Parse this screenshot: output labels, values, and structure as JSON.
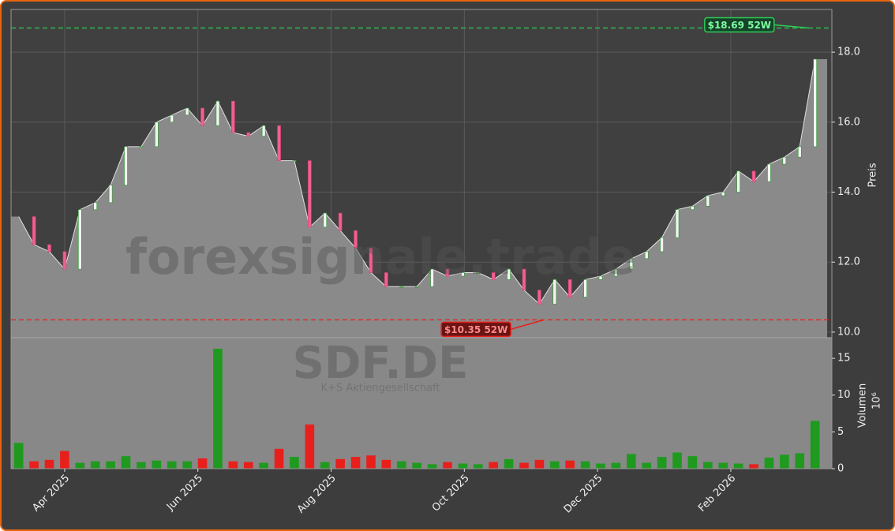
{
  "chart_data": {
    "type": "stock",
    "watermark": "forexsignale.trade",
    "ticker": "SDF.DE",
    "company": "K+S Aktiengesellschaft",
    "y_label": "Preis",
    "y2_label": "Volumen",
    "y2_unit": "10⁶",
    "x": [
      0,
      1,
      2,
      3,
      4,
      5,
      6,
      7,
      8,
      9,
      10,
      11,
      12,
      13,
      14,
      15,
      16,
      17,
      18,
      19,
      20,
      21,
      22,
      23,
      24,
      25,
      26,
      27,
      28,
      29,
      30,
      31,
      32,
      33,
      34,
      35,
      36,
      37,
      38,
      39,
      40,
      41,
      42,
      43,
      44,
      45,
      46,
      47,
      48,
      49,
      50,
      51,
      52
    ],
    "xlim": [
      -0.5,
      53.1
    ],
    "xticks": [
      {
        "value": 3.0,
        "label": "Apr 2025"
      },
      {
        "value": 11.7,
        "label": "Jun 2025"
      },
      {
        "value": 20.4,
        "label": "Aug 2025"
      },
      {
        "value": 29.1,
        "label": "Oct 2025"
      },
      {
        "value": 37.8,
        "label": "Dec 2025"
      },
      {
        "value": 46.5,
        "label": "Feb 2026"
      }
    ],
    "series": [
      {
        "name": "Preis",
        "color": "#8a8a8a",
        "values": [
          13.3,
          12.5,
          12.3,
          11.8,
          13.5,
          13.7,
          14.2,
          15.3,
          15.3,
          16.0,
          16.2,
          16.4,
          15.9,
          16.6,
          15.7,
          15.6,
          15.9,
          14.9,
          14.9,
          13.0,
          13.4,
          12.9,
          12.4,
          11.7,
          11.3,
          11.3,
          11.3,
          11.8,
          11.6,
          11.7,
          11.7,
          11.5,
          11.8,
          11.2,
          10.8,
          11.5,
          11.0,
          11.5,
          11.6,
          11.8,
          12.1,
          12.3,
          12.7,
          13.5,
          13.6,
          13.9,
          14.0,
          14.6,
          14.3,
          14.8,
          15.0,
          15.3,
          17.8
        ]
      },
      {
        "name": "Volumen",
        "axis": "y2",
        "values": [
          3.5,
          1.0,
          1.2,
          2.4,
          0.8,
          1.0,
          1.0,
          1.7,
          0.9,
          1.1,
          1.0,
          1.0,
          1.4,
          16.3,
          1.0,
          0.9,
          0.8,
          2.7,
          1.6,
          6.0,
          0.9,
          1.3,
          1.6,
          1.8,
          1.2,
          1.0,
          0.8,
          0.6,
          0.9,
          0.7,
          0.6,
          0.9,
          1.3,
          0.8,
          1.2,
          1.0,
          1.1,
          1.0,
          0.7,
          0.8,
          2.0,
          0.8,
          1.6,
          2.2,
          1.7,
          0.9,
          0.8,
          0.7,
          0.6,
          1.5,
          1.9,
          2.1,
          6.5
        ]
      }
    ],
    "up_color": "#1f9a1f",
    "down_color": "#e8201c",
    "ylim": [
      9.84,
      19.22
    ],
    "yticks": [
      {
        "value": 10,
        "label": "10.0"
      },
      {
        "value": 12,
        "label": "12.0"
      },
      {
        "value": 14,
        "label": "14.0"
      },
      {
        "value": 16,
        "label": "16.0"
      },
      {
        "value": 18,
        "label": "18.0"
      }
    ],
    "y2lim": [
      0,
      17.8
    ],
    "y2ticks": [
      0,
      5,
      10,
      15
    ],
    "grid": true,
    "annotations": [
      {
        "value": 18.69,
        "x": 51.7,
        "label": "$18.69 52W",
        "color": "#2ecc55"
      },
      {
        "value": 10.35,
        "x": 34.4,
        "label": "$10.35 52W",
        "color": "#e8201c"
      }
    ]
  }
}
